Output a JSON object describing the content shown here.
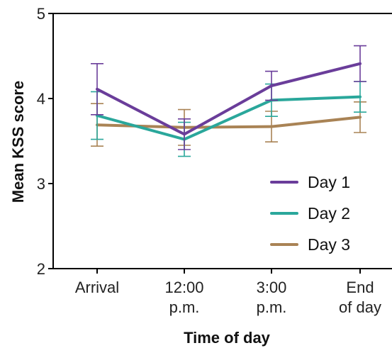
{
  "chart_data": {
    "type": "line",
    "title": "",
    "xlabel": "Time of day",
    "ylabel": "Mean KSS score",
    "ylim": [
      2,
      5
    ],
    "yticks": [
      2,
      3,
      4,
      5
    ],
    "grid": false,
    "legend_position": "lower-right",
    "categories": [
      [
        "Arrival"
      ],
      [
        "12:00",
        "p.m."
      ],
      [
        "3:00",
        "p.m."
      ],
      [
        "End",
        "of day"
      ]
    ],
    "series": [
      {
        "name": "Day 1",
        "color": "#6a3d9a",
        "values": [
          4.11,
          3.58,
          4.15,
          4.41
        ],
        "error": [
          0.3,
          0.18,
          0.17,
          0.21
        ]
      },
      {
        "name": "Day 2",
        "color": "#2aa79b",
        "values": [
          3.8,
          3.52,
          3.98,
          4.02
        ],
        "error": [
          0.28,
          0.2,
          0.19,
          0.18
        ]
      },
      {
        "name": "Day 3",
        "color": "#a98355",
        "values": [
          3.69,
          3.66,
          3.67,
          3.78
        ],
        "error": [
          0.25,
          0.21,
          0.18,
          0.18
        ]
      }
    ]
  }
}
